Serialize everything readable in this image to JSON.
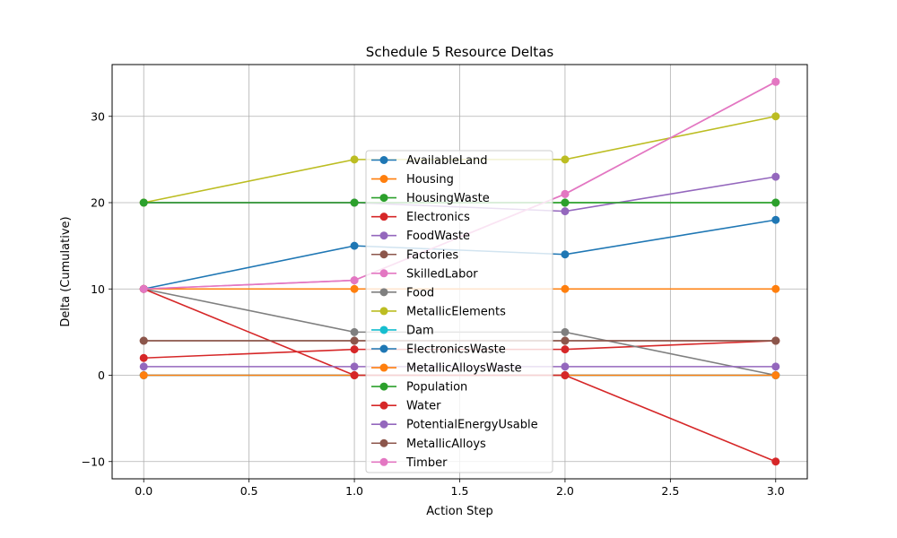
{
  "chart_data": {
    "type": "line",
    "title": "Schedule 5 Resource Deltas",
    "xlabel": "Action Step",
    "ylabel": "Delta (Cumulative)",
    "x": [
      0,
      1,
      2,
      3
    ],
    "xlim": [
      -0.15,
      3.15
    ],
    "ylim": [
      -12,
      36
    ],
    "xticks": [
      0.0,
      0.5,
      1.0,
      1.5,
      2.0,
      2.5,
      3.0
    ],
    "xtick_labels": [
      "0.0",
      "0.5",
      "1.0",
      "1.5",
      "2.0",
      "2.5",
      "3.0"
    ],
    "yticks": [
      -10,
      0,
      10,
      20,
      30
    ],
    "ytick_labels": [
      "−10",
      "0",
      "10",
      "20",
      "30"
    ],
    "grid": true,
    "legend_position": "center",
    "series": [
      {
        "name": "AvailableLand",
        "color": "#1f77b4",
        "values": [
          10,
          15,
          14,
          18
        ]
      },
      {
        "name": "Housing",
        "color": "#ff7f0e",
        "values": [
          10,
          10,
          10,
          10
        ]
      },
      {
        "name": "HousingWaste",
        "color": "#2ca02c",
        "values": [
          20,
          20,
          20,
          20
        ]
      },
      {
        "name": "Electronics",
        "color": "#d62728",
        "values": [
          2,
          3,
          3,
          4
        ]
      },
      {
        "name": "FoodWaste",
        "color": "#9467bd",
        "values": [
          20,
          20,
          19,
          23
        ]
      },
      {
        "name": "Factories",
        "color": "#8c564b",
        "values": [
          4,
          4,
          4,
          4
        ]
      },
      {
        "name": "SkilledLabor",
        "color": "#e377c2",
        "values": [
          10,
          11,
          21,
          34
        ]
      },
      {
        "name": "Food",
        "color": "#7f7f7f",
        "values": [
          10,
          5,
          5,
          0
        ]
      },
      {
        "name": "MetallicElements",
        "color": "#bcbd22",
        "values": [
          20,
          25,
          25,
          30
        ]
      },
      {
        "name": "Dam",
        "color": "#17becf",
        "values": [
          0,
          0,
          0,
          0
        ]
      },
      {
        "name": "ElectronicsWaste",
        "color": "#1f77b4",
        "values": [
          0,
          0,
          0,
          0
        ]
      },
      {
        "name": "MetallicAlloysWaste",
        "color": "#ff7f0e",
        "values": [
          0,
          0,
          0,
          0
        ]
      },
      {
        "name": "Population",
        "color": "#2ca02c",
        "values": [
          20,
          20,
          20,
          20
        ]
      },
      {
        "name": "Water",
        "color": "#d62728",
        "values": [
          10,
          0,
          0,
          -10
        ]
      },
      {
        "name": "PotentialEnergyUsable",
        "color": "#9467bd",
        "values": [
          1,
          1,
          1,
          1
        ]
      },
      {
        "name": "MetallicAlloys",
        "color": "#8c564b",
        "values": [
          4,
          4,
          4,
          4
        ]
      },
      {
        "name": "Timber",
        "color": "#e377c2",
        "values": [
          10,
          11,
          21,
          34
        ]
      }
    ]
  }
}
